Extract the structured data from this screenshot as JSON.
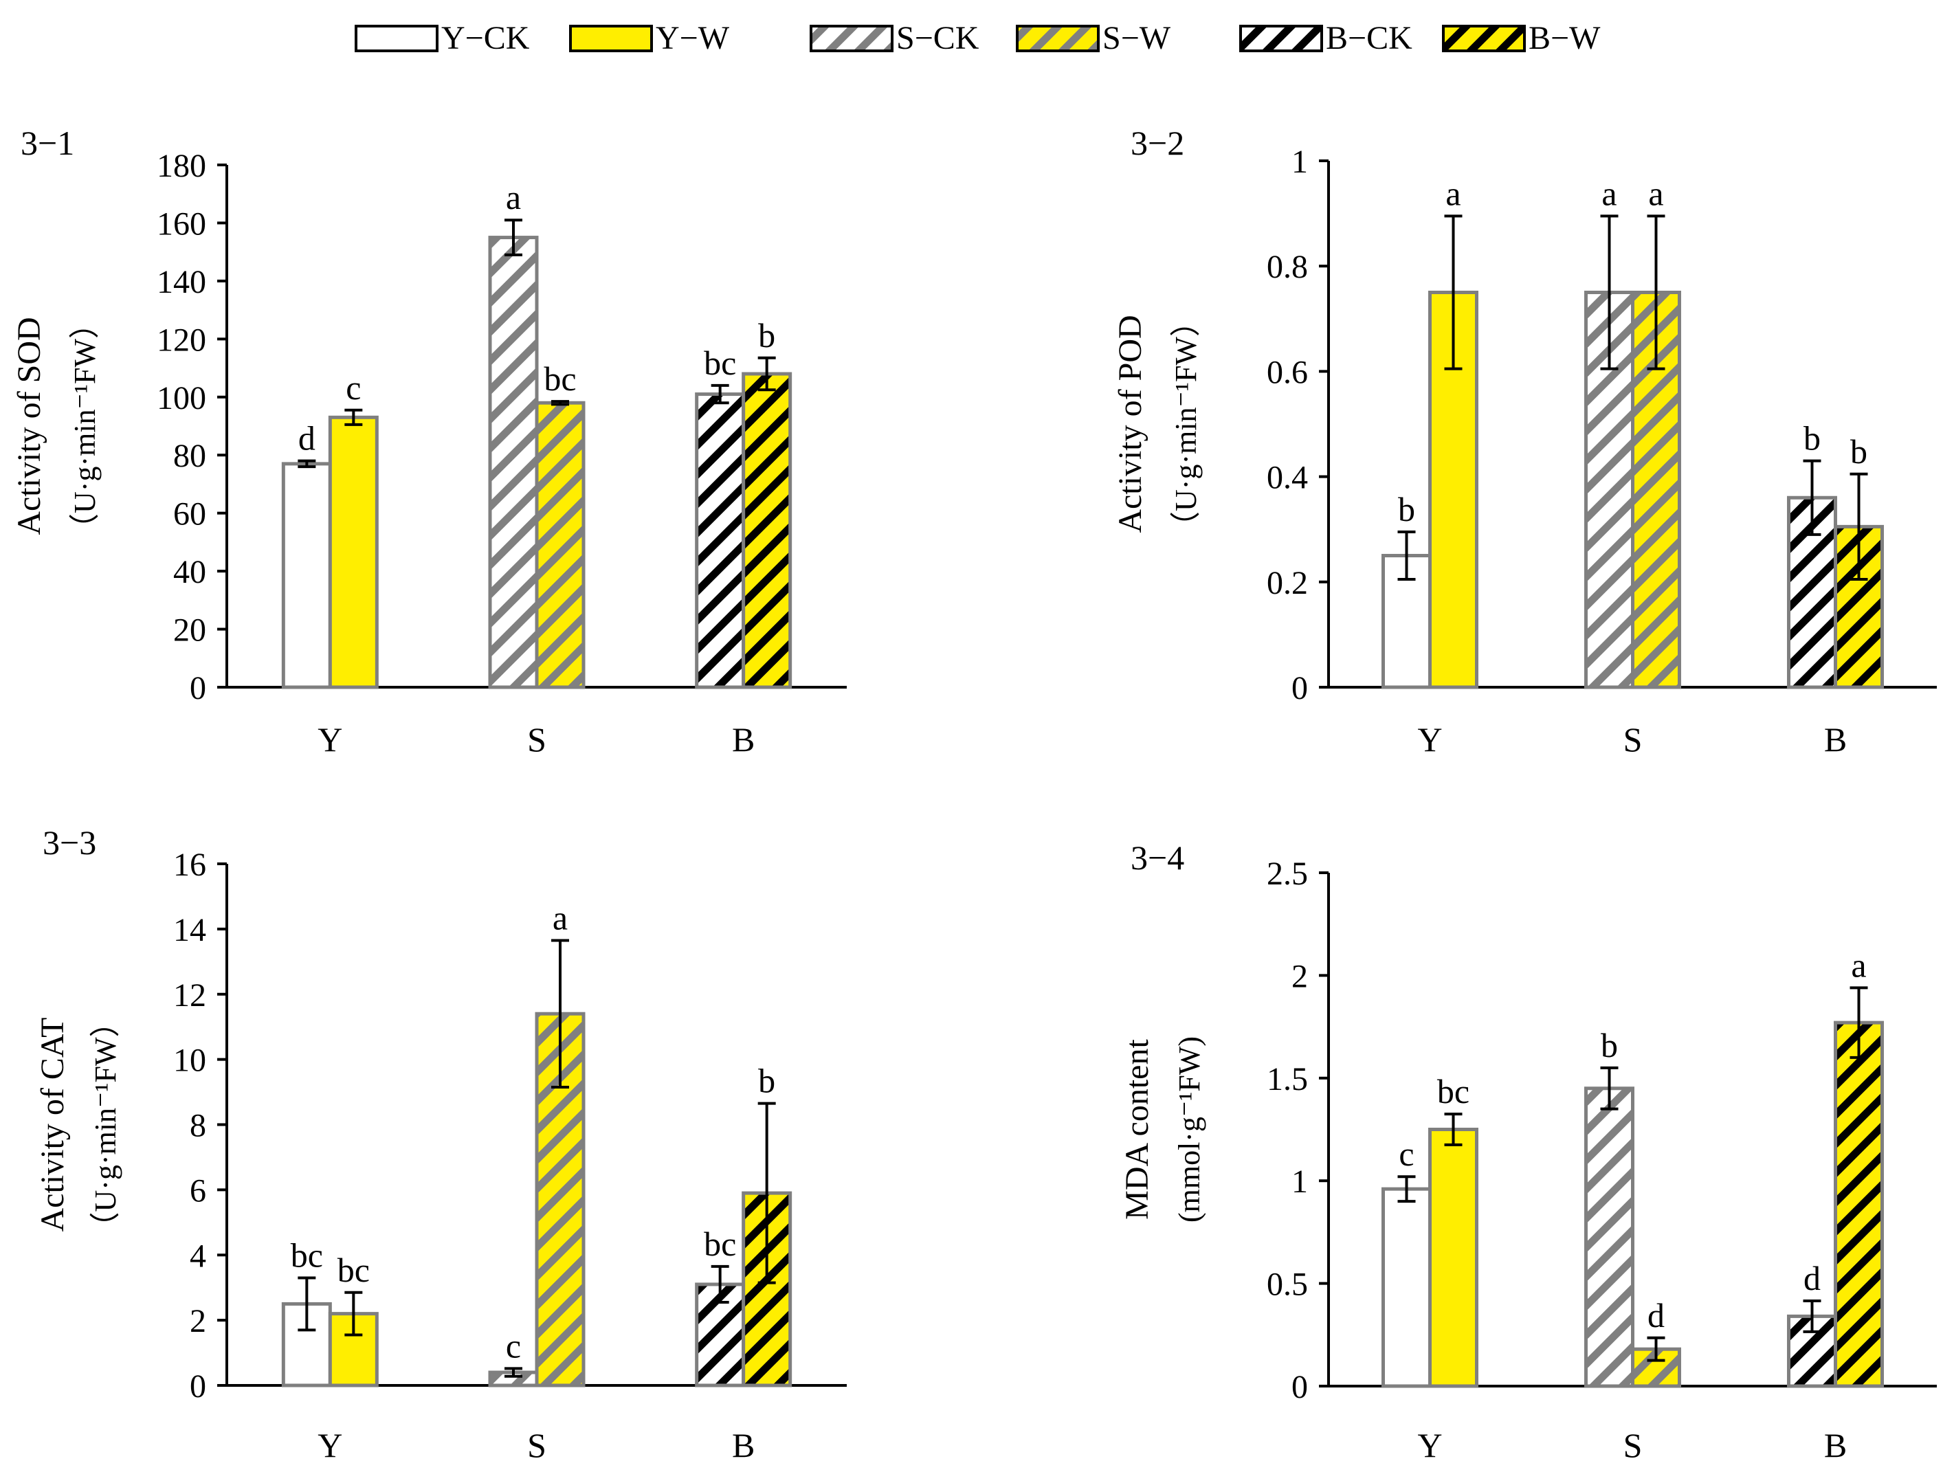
{
  "legend": {
    "items": [
      {
        "label": "Y−CK",
        "key": "Y-CK"
      },
      {
        "label": "Y−W",
        "key": "Y-W"
      },
      {
        "label": "S−CK",
        "key": "S-CK"
      },
      {
        "label": "S−W",
        "key": "S-W"
      },
      {
        "label": "B−CK",
        "key": "B-CK"
      },
      {
        "label": "B−W",
        "key": "B-W"
      }
    ]
  },
  "styles": {
    "Y-CK": {
      "fill": "#ffffff",
      "stripe": null
    },
    "Y-W": {
      "fill": "#ffee00",
      "stripe": null
    },
    "S-CK": {
      "fill": "#ffffff",
      "stripe": "#808080"
    },
    "S-W": {
      "fill": "#ffee00",
      "stripe": "#808080"
    },
    "B-CK": {
      "fill": "#ffffff",
      "stripe": "#000000"
    },
    "B-W": {
      "fill": "#ffee00",
      "stripe": "#000000"
    },
    "border": "#7f7f7f"
  },
  "chart_data": [
    {
      "type": "bar",
      "panel_label": "3−1",
      "ylabel_lines": [
        "Activity of SOD",
        "（U·g·min⁻¹FW）"
      ],
      "categories": [
        "Y",
        "S",
        "B"
      ],
      "ylim": [
        0,
        180
      ],
      "yticks": [
        0,
        20,
        40,
        60,
        80,
        100,
        120,
        140,
        160,
        180
      ],
      "ytick_labels": [
        "0",
        "20",
        "40",
        "60",
        "80",
        "100",
        "120",
        "140",
        "160",
        "180"
      ],
      "bars": [
        {
          "group": "Y",
          "key": "Y-CK",
          "value": 77,
          "error": 1,
          "letter": "d"
        },
        {
          "group": "Y",
          "key": "Y-W",
          "value": 93,
          "error": 2.5,
          "letter": "c"
        },
        {
          "group": "S",
          "key": "S-CK",
          "value": 155,
          "error": 6,
          "letter": "a"
        },
        {
          "group": "S",
          "key": "S-W",
          "value": 98,
          "error": 0.5,
          "letter": "bc"
        },
        {
          "group": "B",
          "key": "B-CK",
          "value": 101,
          "error": 3,
          "letter": "bc"
        },
        {
          "group": "B",
          "key": "B-W",
          "value": 108,
          "error": 5.5,
          "letter": "b"
        }
      ]
    },
    {
      "type": "bar",
      "panel_label": "3−2",
      "ylabel_lines": [
        "Activity of POD",
        "（U·g·min⁻¹FW）"
      ],
      "categories": [
        "Y",
        "S",
        "B"
      ],
      "ylim": [
        0,
        1
      ],
      "yticks": [
        0,
        0.2,
        0.4,
        0.6,
        0.8,
        1
      ],
      "ytick_labels": [
        "0",
        "0.2",
        "0.4",
        "0.6",
        "0.8",
        "1"
      ],
      "bars": [
        {
          "group": "Y",
          "key": "Y-CK",
          "value": 0.25,
          "error": 0.045,
          "letter": "b"
        },
        {
          "group": "Y",
          "key": "Y-W",
          "value": 0.75,
          "error": 0.145,
          "letter": "a"
        },
        {
          "group": "S",
          "key": "S-CK",
          "value": 0.75,
          "error": 0.145,
          "letter": "a"
        },
        {
          "group": "S",
          "key": "S-W",
          "value": 0.75,
          "error": 0.145,
          "letter": "a"
        },
        {
          "group": "B",
          "key": "B-CK",
          "value": 0.36,
          "error": 0.07,
          "letter": "b"
        },
        {
          "group": "B",
          "key": "B-W",
          "value": 0.305,
          "error": 0.1,
          "letter": "b"
        }
      ]
    },
    {
      "type": "bar",
      "panel_label": "3−3",
      "ylabel_lines": [
        "Activity of CAT",
        "（U·g·min⁻¹FW）"
      ],
      "categories": [
        "Y",
        "S",
        "B"
      ],
      "ylim": [
        0,
        16
      ],
      "yticks": [
        0,
        2,
        4,
        6,
        8,
        10,
        12,
        14,
        16
      ],
      "ytick_labels": [
        "0",
        "2",
        "4",
        "6",
        "8",
        "10",
        "12",
        "14",
        "16"
      ],
      "bars": [
        {
          "group": "Y",
          "key": "Y-CK",
          "value": 2.5,
          "error": 0.8,
          "letter": "bc"
        },
        {
          "group": "Y",
          "key": "Y-W",
          "value": 2.2,
          "error": 0.65,
          "letter": "bc"
        },
        {
          "group": "S",
          "key": "S-CK",
          "value": 0.4,
          "error": 0.12,
          "letter": "c"
        },
        {
          "group": "S",
          "key": "S-W",
          "value": 11.4,
          "error": 2.25,
          "letter": "a"
        },
        {
          "group": "B",
          "key": "B-CK",
          "value": 3.1,
          "error": 0.55,
          "letter": "bc"
        },
        {
          "group": "B",
          "key": "B-W",
          "value": 5.9,
          "error": 2.75,
          "letter": "b"
        }
      ]
    },
    {
      "type": "bar",
      "panel_label": "3−4",
      "ylabel_lines": [
        "MDA content",
        "(mmol·g⁻¹FW)"
      ],
      "categories": [
        "Y",
        "S",
        "B"
      ],
      "ylim": [
        0,
        2.5
      ],
      "yticks": [
        0,
        0.5,
        1,
        1.5,
        2,
        2.5
      ],
      "ytick_labels": [
        "0",
        "0.5",
        "1",
        "1.5",
        "2",
        "2.5"
      ],
      "bars": [
        {
          "group": "Y",
          "key": "Y-CK",
          "value": 0.96,
          "error": 0.06,
          "letter": "c"
        },
        {
          "group": "Y",
          "key": "Y-W",
          "value": 1.25,
          "error": 0.075,
          "letter": "bc"
        },
        {
          "group": "S",
          "key": "S-CK",
          "value": 1.45,
          "error": 0.1,
          "letter": "b"
        },
        {
          "group": "S",
          "key": "S-W",
          "value": 0.18,
          "error": 0.055,
          "letter": "d"
        },
        {
          "group": "B",
          "key": "B-CK",
          "value": 0.34,
          "error": 0.075,
          "letter": "d"
        },
        {
          "group": "B",
          "key": "B-W",
          "value": 1.77,
          "error": 0.17,
          "letter": "a"
        }
      ]
    }
  ]
}
